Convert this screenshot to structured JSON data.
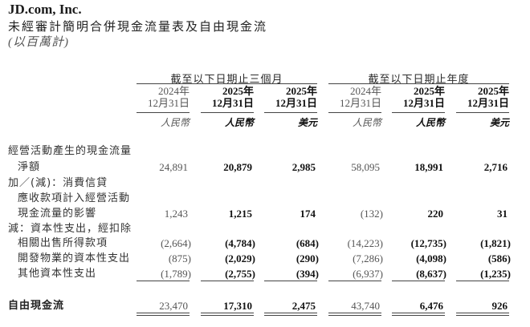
{
  "header": {
    "company": "JD.com, Inc.",
    "title": "未經審計簡明合併現金流量表及自由現金流",
    "unit": "(以百萬計)"
  },
  "groups": [
    "截至以下日期止三個月",
    "截至以下日期止年度"
  ],
  "columns": [
    {
      "year": "2024年",
      "date": "12月31日",
      "currency": "人民幣",
      "bold": false
    },
    {
      "year": "2025年",
      "date": "12月31日",
      "currency": "人民幣",
      "bold": true
    },
    {
      "year": "2025年",
      "date": "12月31日",
      "currency": "美元",
      "bold": true
    },
    {
      "year": "2024年",
      "date": "12月31日",
      "currency": "人民幣",
      "bold": false
    },
    {
      "year": "2025年",
      "date": "12月31日",
      "currency": "人民幣",
      "bold": true
    },
    {
      "year": "2025年",
      "date": "12月31日",
      "currency": "美元",
      "bold": true
    }
  ],
  "rows": [
    {
      "label": "經營活動產生的現金流量",
      "indent": false,
      "values": null
    },
    {
      "label": "淨額",
      "indent": true,
      "values": [
        "24,891",
        "20,879",
        "2,985",
        "58,095",
        "18,991",
        "2,716"
      ]
    },
    {
      "label": "加／(減)：消費信貸",
      "indent": false,
      "values": null
    },
    {
      "label": "應收款項計入經營活動",
      "indent": true,
      "values": null
    },
    {
      "label": "現金流量的影響",
      "indent": true,
      "values": [
        "1,243",
        "1,215",
        "174",
        "(132)",
        "220",
        "31"
      ]
    },
    {
      "label": "減：資本性支出，經扣除",
      "indent": false,
      "values": null
    },
    {
      "label": "相關出售所得款項",
      "indent": true,
      "values": [
        "(2,664)",
        "(4,784)",
        "(684)",
        "(14,223)",
        "(12,735)",
        "(1,821)"
      ]
    },
    {
      "label": "開發物業的資本性支出",
      "indent": true,
      "values": [
        "(875)",
        "(2,029)",
        "(290)",
        "(7,286)",
        "(4,098)",
        "(586)"
      ]
    },
    {
      "label": "其他資本性支出",
      "indent": true,
      "values": [
        "(1,789)",
        "(2,755)",
        "(394)",
        "(6,937)",
        "(8,637)",
        "(1,235)"
      ]
    }
  ],
  "total": {
    "label": "自由現金流",
    "values": [
      "23,470",
      "17,310",
      "2,475",
      "43,740",
      "6,476",
      "926"
    ]
  }
}
